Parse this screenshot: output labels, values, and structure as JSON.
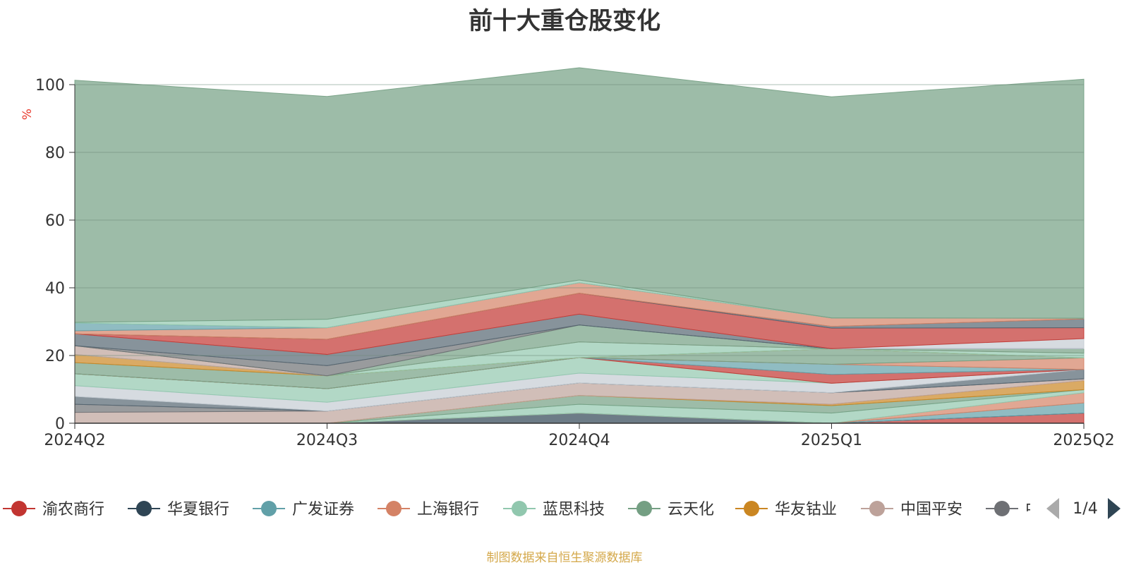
{
  "chart_data": {
    "type": "area",
    "title": "前十大重仓股变化",
    "ylabel": "%",
    "x": [
      "2024Q2",
      "2024Q3",
      "2024Q4",
      "2025Q1",
      "2025Q2"
    ],
    "yticks": [
      0,
      20,
      40,
      60,
      80,
      100
    ],
    "ylim": [
      0,
      100
    ],
    "grid": true,
    "legend_placement": "bottom",
    "series": [
      {
        "name": "渝农商行",
        "color": "#c23531",
        "values": [
          0,
          0,
          0,
          0,
          3.0
        ]
      },
      {
        "name": "华夏银行",
        "color": "#2f4554",
        "values": [
          0,
          0,
          3.0,
          0,
          0
        ]
      },
      {
        "name": "广发证券",
        "color": "#61a0a8",
        "values": [
          0,
          0,
          0,
          0,
          3.0
        ]
      },
      {
        "name": "上海银行",
        "color": "#d48265",
        "values": [
          0,
          0,
          0,
          0,
          3.0
        ]
      },
      {
        "name": "蓝思科技",
        "color": "#91c7ae",
        "values": [
          0,
          0,
          2.6,
          3.0,
          0.9
        ]
      },
      {
        "name": "云天化",
        "color": "#749f83",
        "values": [
          0,
          0,
          2.6,
          2.2,
          0
        ]
      },
      {
        "name": "华友钴业",
        "color": "#ca8622",
        "values": [
          0,
          0,
          0,
          0.4,
          2.7
        ]
      },
      {
        "name": "中国平安",
        "color": "#bda29a",
        "values": [
          3.2,
          3.6,
          3.7,
          3.4,
          0.5
        ]
      },
      {
        "name": "中国神华",
        "color": "#6e7074",
        "values": [
          2.4,
          0,
          0,
          0,
          0
        ]
      },
      {
        "series_color_only": true,
        "name": "",
        "color": "#546570",
        "values": [
          2.3,
          0,
          0,
          0,
          2.8
        ]
      },
      {
        "name": "",
        "color": "#c4ccd3",
        "values": [
          3.2,
          2.6,
          2.9,
          2.8,
          0
        ]
      },
      {
        "name": "",
        "color": "#91c7ae",
        "values": [
          3.5,
          4.0,
          4.6,
          0,
          0
        ]
      },
      {
        "name": "",
        "color": "#c23531",
        "values": [
          0,
          0,
          0,
          2.6,
          0
        ]
      },
      {
        "name": "",
        "color": "#61a0a8",
        "values": [
          0,
          0,
          0,
          3.0,
          0
        ]
      },
      {
        "name": "",
        "color": "#d48265",
        "values": [
          0,
          0,
          0,
          0,
          3.4
        ]
      },
      {
        "name": "",
        "color": "#749f83",
        "values": [
          3.3,
          3.8,
          0,
          4.6,
          0
        ]
      },
      {
        "name": "",
        "color": "#ca8622",
        "values": [
          2.4,
          0,
          0,
          0,
          0
        ]
      },
      {
        "name": "",
        "color": "#91c7ae",
        "values": [
          0,
          0,
          4.6,
          0,
          1.4
        ]
      },
      {
        "name": "",
        "color": "#bda29a",
        "values": [
          2.6,
          0,
          0,
          0,
          0
        ]
      },
      {
        "name": "",
        "color": "#749f83",
        "values": [
          0,
          0,
          5.0,
          0,
          1.3
        ]
      },
      {
        "name": "",
        "color": "#6e7074",
        "values": [
          0,
          3.0,
          0,
          0,
          0
        ]
      },
      {
        "name": "",
        "color": "#546570",
        "values": [
          3.5,
          3.3,
          3.2,
          0,
          0
        ]
      },
      {
        "name": "",
        "color": "#c4ccd3",
        "values": [
          0,
          0,
          0,
          0,
          3.0
        ]
      },
      {
        "name": "",
        "color": "#c23531",
        "values": [
          0,
          4.5,
          6.2,
          6.1,
          3.2
        ]
      },
      {
        "name": "",
        "color": "#546570",
        "values": [
          0,
          0,
          0,
          0.5,
          2.6
        ]
      },
      {
        "name": "",
        "color": "#d48265",
        "values": [
          0.9,
          3.4,
          3.1,
          2.5,
          0.2
        ]
      },
      {
        "name": "",
        "color": "#61a0a8",
        "values": [
          2.3,
          0,
          0,
          0,
          0
        ]
      },
      {
        "name": "",
        "color": "#91c7ae",
        "values": [
          0.2,
          2.5,
          0.8,
          0,
          0
        ]
      },
      {
        "name": "",
        "color": "#749f83",
        "values": [
          71.5,
          65.8,
          62.7,
          65.3,
          70.6
        ]
      }
    ]
  },
  "legend": {
    "items": [
      {
        "name": "渝农商行",
        "color": "#c23531"
      },
      {
        "name": "华夏银行",
        "color": "#2f4554"
      },
      {
        "name": "广发证券",
        "color": "#61a0a8"
      },
      {
        "name": "上海银行",
        "color": "#d48265"
      },
      {
        "name": "蓝思科技",
        "color": "#91c7ae"
      },
      {
        "name": "云天化",
        "color": "#749f83"
      },
      {
        "name": "华友钴业",
        "color": "#ca8622"
      },
      {
        "name": "中国平安",
        "color": "#bda29a"
      },
      {
        "name": "中国神华",
        "color": "#6e7074"
      }
    ],
    "page_indicator": "1/4",
    "prev_icon": "triangle-left-icon",
    "next_icon": "triangle-right-icon"
  },
  "footer": {
    "source_note": "制图数据来自恒生聚源数据库"
  }
}
